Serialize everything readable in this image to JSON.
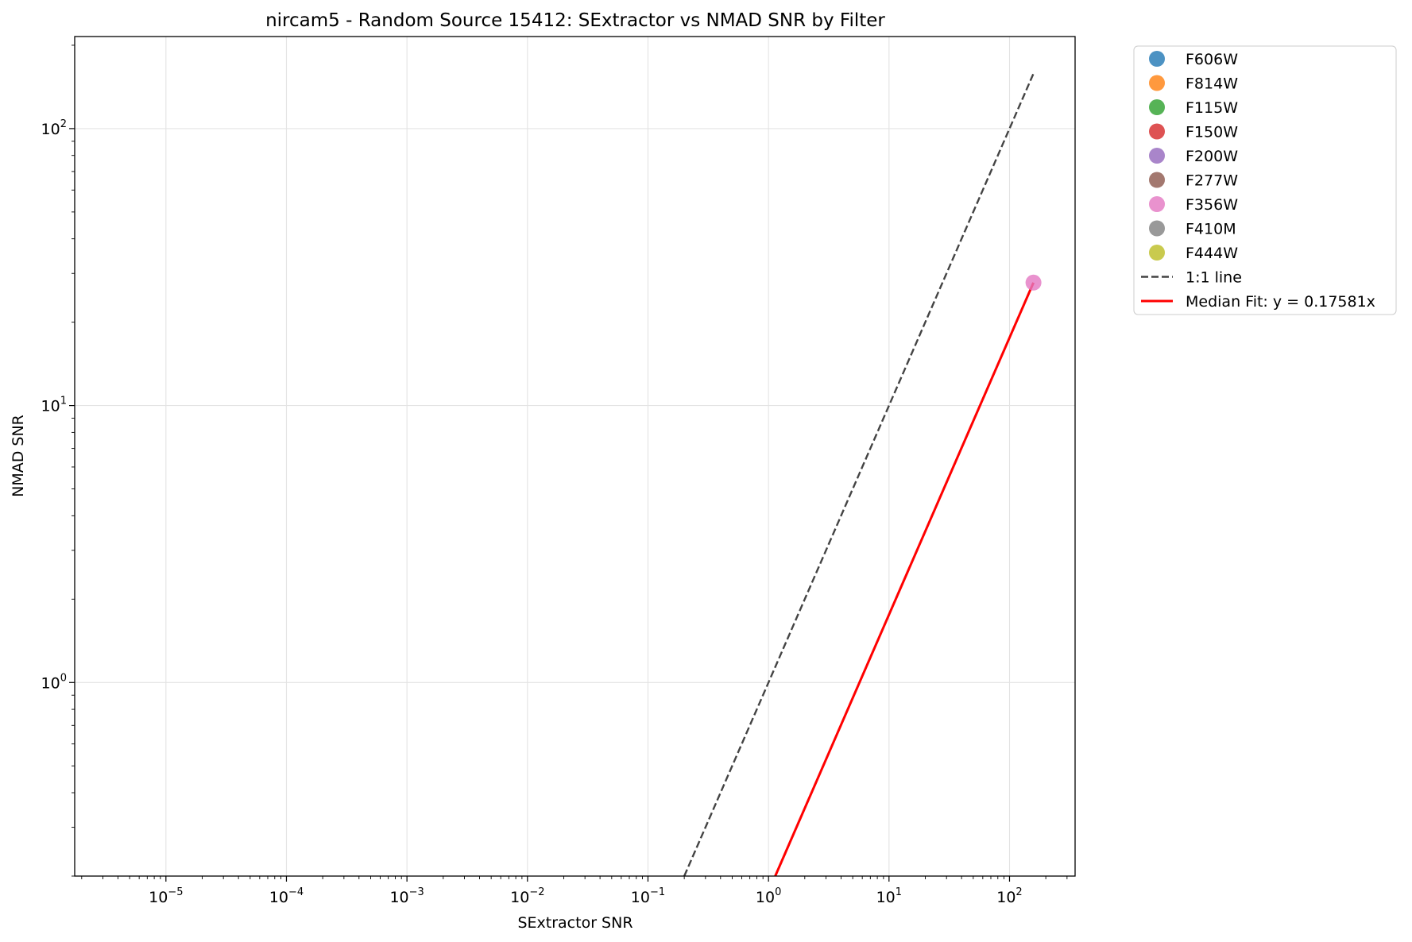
{
  "chart_data": {
    "type": "scatter",
    "title": "nircam5 - Random Source 15412: SExtractor vs NMAD SNR by Filter",
    "xlabel": "SExtractor SNR",
    "ylabel": "NMAD SNR",
    "xscale": "log",
    "yscale": "log",
    "xlim": [
      1.75e-06,
      350
    ],
    "ylim": [
      0.2,
      215
    ],
    "grid": true,
    "legend_position": "outside right, top",
    "x_ticks": [
      {
        "value": 1e-05,
        "base": "10",
        "exp": "−5"
      },
      {
        "value": 0.0001,
        "base": "10",
        "exp": "−4"
      },
      {
        "value": 0.001,
        "base": "10",
        "exp": "−3"
      },
      {
        "value": 0.01,
        "base": "10",
        "exp": "−2"
      },
      {
        "value": 0.1,
        "base": "10",
        "exp": "−1"
      },
      {
        "value": 1,
        "base": "10",
        "exp": "0"
      },
      {
        "value": 10,
        "base": "10",
        "exp": "1"
      },
      {
        "value": 100,
        "base": "10",
        "exp": "2"
      }
    ],
    "y_ticks": [
      {
        "value": 1,
        "base": "10",
        "exp": "0"
      },
      {
        "value": 10,
        "base": "10",
        "exp": "1"
      },
      {
        "value": 100,
        "base": "10",
        "exp": "2"
      }
    ],
    "series": [
      {
        "name": "F606W",
        "color": "#1f77b4",
        "points": []
      },
      {
        "name": "F814W",
        "color": "#ff7f0e",
        "points": []
      },
      {
        "name": "F115W",
        "color": "#2ca02c",
        "points": []
      },
      {
        "name": "F150W",
        "color": "#d62728",
        "points": []
      },
      {
        "name": "F200W",
        "color": "#9467bd",
        "points": []
      },
      {
        "name": "F277W",
        "color": "#8c564b",
        "points": []
      },
      {
        "name": "F356W",
        "color": "#e377c2",
        "points": [
          {
            "x": 158,
            "y": 27.8
          }
        ]
      },
      {
        "name": "F410M",
        "color": "#7f7f7f",
        "points": []
      },
      {
        "name": "F444W",
        "color": "#bcbd22",
        "points": []
      }
    ],
    "lines": [
      {
        "name": "1:1 line",
        "style": "dashed",
        "color": "#444444",
        "slope": 1,
        "x_range": [
          0.2,
          158
        ]
      },
      {
        "name": "Median Fit: y = 0.17581x",
        "style": "solid",
        "color": "#ff0000",
        "slope": 0.17581,
        "x_range": [
          1.1,
          158
        ]
      }
    ]
  }
}
